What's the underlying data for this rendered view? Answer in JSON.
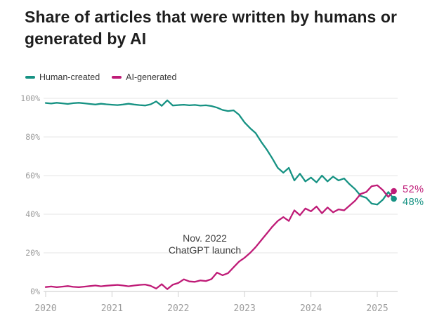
{
  "title": "Share of articles that were written by humans or generated by AI",
  "chart_data": {
    "type": "line",
    "x_start": "2020-01",
    "x_interval": "monthly",
    "x_end": "2025-04",
    "xlim_years": [
      2020,
      2025.4
    ],
    "ylim": [
      0,
      100
    ],
    "grid": "horizontal",
    "legend_position": "top-left",
    "y_ticks": [
      {
        "value": 0,
        "label": "0%"
      },
      {
        "value": 20,
        "label": "20%"
      },
      {
        "value": 40,
        "label": "40%"
      },
      {
        "value": 60,
        "label": "60%"
      },
      {
        "value": 80,
        "label": "80%"
      },
      {
        "value": 100,
        "label": "100%"
      }
    ],
    "x_ticks": [
      {
        "year": 2020,
        "label": "2020"
      },
      {
        "year": 2021,
        "label": "2021"
      },
      {
        "year": 2022,
        "label": "2022"
      },
      {
        "year": 2023,
        "label": "2023"
      },
      {
        "year": 2024,
        "label": "2024"
      },
      {
        "year": 2025,
        "label": "2025"
      }
    ],
    "annotation": {
      "lines": [
        "Nov. 2022",
        "ChatGPT launch"
      ],
      "x_year": 2022.4,
      "y_value": 25.8
    },
    "series": [
      {
        "name": "Human-created",
        "color": "#169283",
        "end_label": "48%",
        "values": [
          97.6,
          97.3,
          97.7,
          97.4,
          97.1,
          97.5,
          97.7,
          97.4,
          97.1,
          96.8,
          97.2,
          96.9,
          96.7,
          96.5,
          96.8,
          97.2,
          96.8,
          96.5,
          96.3,
          96.9,
          98.4,
          96.1,
          99.0,
          96.3,
          96.5,
          96.7,
          96.4,
          96.6,
          96.2,
          96.4,
          96.0,
          95.2,
          94.0,
          93.4,
          93.8,
          91.5,
          87.5,
          84.5,
          82.0,
          77.5,
          73.5,
          69.0,
          64.0,
          61.5,
          64.0,
          57.5,
          61.0,
          57.0,
          59.0,
          56.5,
          60.0,
          57.0,
          59.5,
          57.5,
          58.5,
          55.5,
          53.0,
          49.5,
          48.5,
          45.5,
          45.0,
          47.5,
          51.5,
          48.0
        ]
      },
      {
        "name": "AI-generated",
        "color": "#bf1b77",
        "end_label": "52%",
        "values": [
          2.3,
          2.6,
          2.2,
          2.5,
          2.8,
          2.4,
          2.2,
          2.5,
          2.8,
          3.1,
          2.7,
          3.0,
          3.2,
          3.4,
          3.1,
          2.7,
          3.1,
          3.4,
          3.6,
          2.9,
          1.5,
          3.8,
          1.2,
          3.5,
          4.4,
          6.3,
          5.2,
          5.0,
          5.7,
          5.4,
          6.4,
          9.8,
          8.4,
          9.5,
          12.5,
          15.5,
          17.5,
          20.0,
          23.0,
          26.5,
          30.0,
          33.5,
          36.5,
          38.5,
          36.5,
          42.0,
          39.5,
          43.0,
          41.5,
          44.0,
          40.5,
          43.5,
          41.0,
          42.5,
          42.0,
          44.5,
          47.0,
          50.5,
          51.5,
          54.5,
          55.0,
          52.5,
          49.0,
          52.0
        ]
      }
    ]
  }
}
